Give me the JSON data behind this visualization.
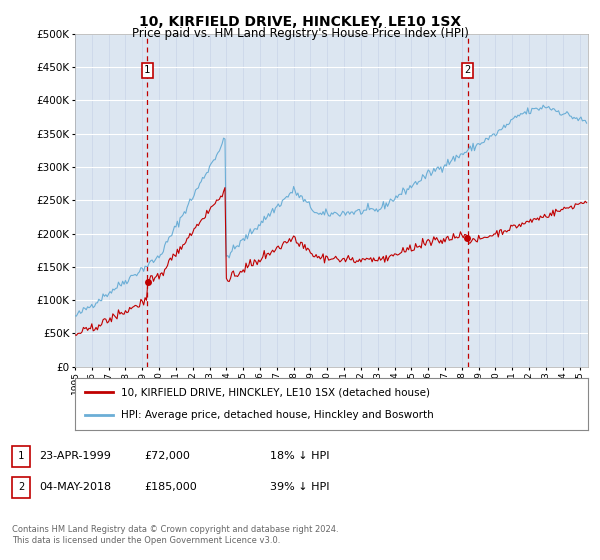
{
  "title": "10, KIRFIELD DRIVE, HINCKLEY, LE10 1SX",
  "subtitle": "Price paid vs. HM Land Registry's House Price Index (HPI)",
  "hpi_label": "HPI: Average price, detached house, Hinckley and Bosworth",
  "property_label": "10, KIRFIELD DRIVE, HINCKLEY, LE10 1SX (detached house)",
  "sale1_date": "23-APR-1999",
  "sale1_price": 72000,
  "sale1_pct": "18% ↓ HPI",
  "sale1_year": 1999.3,
  "sale2_date": "04-MAY-2018",
  "sale2_price": 185000,
  "sale2_pct": "39% ↓ HPI",
  "sale2_year": 2018.35,
  "hpi_color": "#6baed6",
  "property_color": "#c00000",
  "dashed_color": "#c00000",
  "plot_bg": "#dce6f1",
  "ylim": [
    0,
    500000
  ],
  "xlim_start": 1995.0,
  "xlim_end": 2025.5,
  "footer": "Contains HM Land Registry data © Crown copyright and database right 2024.\nThis data is licensed under the Open Government Licence v3.0."
}
